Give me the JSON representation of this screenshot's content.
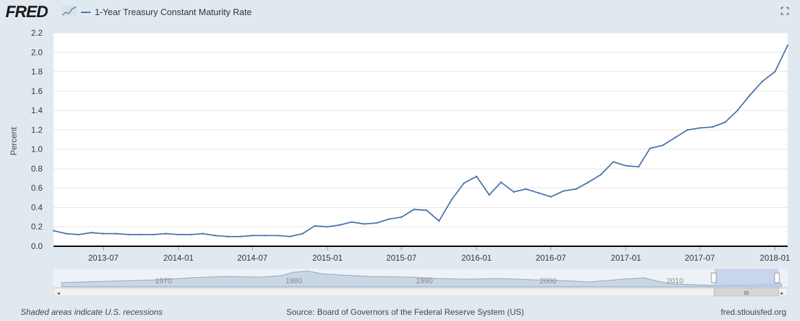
{
  "header": {
    "logo_text": "FRED",
    "logo_icon": "chart-trend-icon",
    "legend_label": "1-Year Treasury Constant Maturity Rate",
    "expand_icon": "fullscreen-icon"
  },
  "footer": {
    "recession_note": "Shaded areas indicate U.S. recessions",
    "source": "Source: Board of Governors of the Federal Reserve System (US)",
    "site": "fred.stlouisfed.org"
  },
  "colors": {
    "series": "#4572a7",
    "background": "#e1e9f0",
    "plot": "#ffffff",
    "navigator_fill": "#c9d6e3",
    "navigator_line": "#8fa9c4"
  },
  "navigator": {
    "labels": [
      "1970",
      "1980",
      "1990",
      "2000",
      "2010"
    ],
    "scroll_glyph": "III"
  },
  "chart_data": {
    "type": "line",
    "ylabel": "Percent",
    "xlabel": "",
    "ylim": [
      0,
      2.2
    ],
    "yticks": [
      0.0,
      0.2,
      0.4,
      0.6,
      0.8,
      1.0,
      1.2,
      1.4,
      1.6,
      1.8,
      2.0,
      2.2
    ],
    "ytick_labels": [
      "0.0",
      "0.2",
      "0.4",
      "0.6",
      "0.8",
      "1.0",
      "1.2",
      "1.4",
      "1.6",
      "1.8",
      "2.0",
      "2.2"
    ],
    "xlim": [
      "2013-03-01",
      "2018-02-01"
    ],
    "xticks": [
      "2013-07-01",
      "2014-01-01",
      "2014-07-01",
      "2015-01-01",
      "2015-07-01",
      "2016-01-01",
      "2016-07-01",
      "2017-01-01",
      "2017-07-01",
      "2018-01-01"
    ],
    "xtick_labels": [
      "2013-07",
      "2014-01",
      "2014-07",
      "2015-01",
      "2015-07",
      "2016-01",
      "2016-07",
      "2017-01",
      "2017-07",
      "2018-01"
    ],
    "grid": true,
    "series": [
      {
        "name": "1-Year Treasury Constant Maturity Rate",
        "x": [
          "2013-03-01",
          "2013-04-01",
          "2013-05-01",
          "2013-06-01",
          "2013-07-01",
          "2013-08-01",
          "2013-09-01",
          "2013-10-01",
          "2013-11-01",
          "2013-12-01",
          "2014-01-01",
          "2014-02-01",
          "2014-03-01",
          "2014-04-01",
          "2014-05-01",
          "2014-06-01",
          "2014-07-01",
          "2014-08-01",
          "2014-09-01",
          "2014-10-01",
          "2014-11-01",
          "2014-12-01",
          "2015-01-01",
          "2015-02-01",
          "2015-03-01",
          "2015-04-01",
          "2015-05-01",
          "2015-06-01",
          "2015-07-01",
          "2015-08-01",
          "2015-09-01",
          "2015-10-01",
          "2015-11-01",
          "2015-12-01",
          "2016-01-01",
          "2016-02-01",
          "2016-03-01",
          "2016-04-01",
          "2016-05-01",
          "2016-06-01",
          "2016-07-01",
          "2016-08-01",
          "2016-09-01",
          "2016-10-01",
          "2016-11-01",
          "2016-12-01",
          "2017-01-01",
          "2017-02-01",
          "2017-03-01",
          "2017-04-01",
          "2017-05-01",
          "2017-06-01",
          "2017-07-01",
          "2017-08-01",
          "2017-09-01",
          "2017-10-01",
          "2017-11-01",
          "2017-12-01",
          "2018-01-01",
          "2018-02-01"
        ],
        "values": [
          0.16,
          0.13,
          0.12,
          0.14,
          0.13,
          0.13,
          0.12,
          0.12,
          0.12,
          0.13,
          0.12,
          0.12,
          0.13,
          0.11,
          0.1,
          0.1,
          0.11,
          0.11,
          0.11,
          0.1,
          0.13,
          0.21,
          0.2,
          0.22,
          0.25,
          0.23,
          0.24,
          0.28,
          0.3,
          0.38,
          0.37,
          0.26,
          0.48,
          0.65,
          0.72,
          0.53,
          0.66,
          0.56,
          0.59,
          0.55,
          0.51,
          0.57,
          0.59,
          0.66,
          0.74,
          0.87,
          0.83,
          0.82,
          1.01,
          1.04,
          1.12,
          1.2,
          1.22,
          1.23,
          1.28,
          1.4,
          1.56,
          1.7,
          1.8,
          2.07
        ]
      }
    ]
  }
}
